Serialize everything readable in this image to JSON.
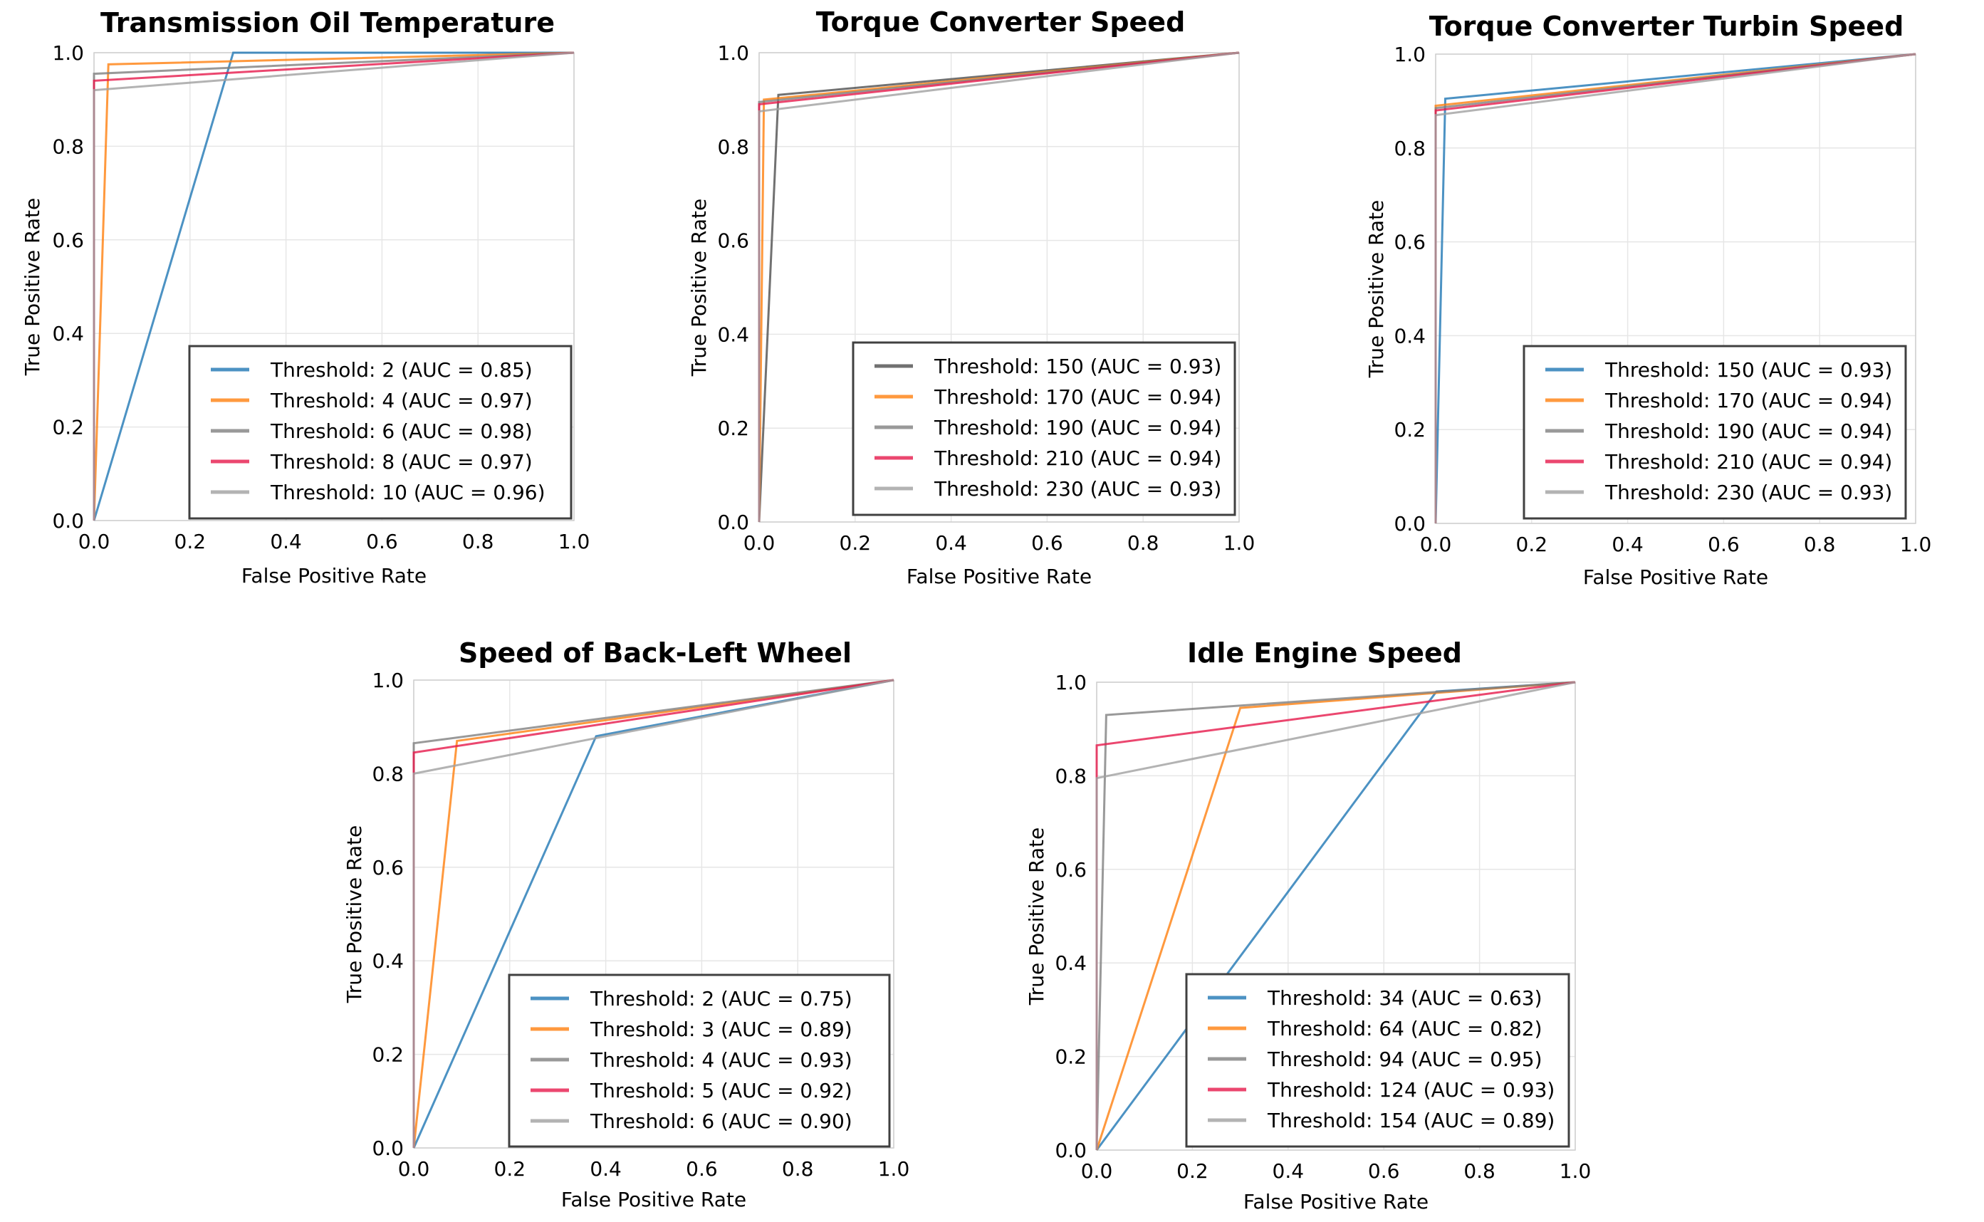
{
  "chart_data": [
    {
      "type": "line",
      "title": "Transmission Oil Temperature",
      "xlabel": "False Positive Rate",
      "ylabel": "True Positive Rate",
      "xlim": [
        0,
        1
      ],
      "ylim": [
        0,
        1
      ],
      "xticks": [
        "0.0",
        "0.2",
        "0.4",
        "0.6",
        "0.8",
        "1.0"
      ],
      "yticks": [
        "0.0",
        "0.2",
        "0.4",
        "0.6",
        "0.8",
        "1.0"
      ],
      "grid": true,
      "legend_position": "lower-right",
      "series": [
        {
          "name": "Threshold: 2 (AUC = 0.85)",
          "color": "#1f77b4",
          "x": [
            0,
            0.29,
            1
          ],
          "y": [
            0,
            1.0,
            1
          ]
        },
        {
          "name": "Threshold: 4 (AUC = 0.97)",
          "color": "#ff7f0e",
          "x": [
            0,
            0.03,
            1
          ],
          "y": [
            0,
            0.975,
            1
          ]
        },
        {
          "name": "Threshold: 6 (AUC = 0.98)",
          "color": "#7f7f7f",
          "x": [
            0,
            0.0,
            1
          ],
          "y": [
            0,
            0.955,
            1
          ]
        },
        {
          "name": "Threshold: 8 (AUC = 0.97)",
          "color": "#e6194b",
          "x": [
            0,
            0.0,
            1
          ],
          "y": [
            0,
            0.94,
            1
          ]
        },
        {
          "name": "Threshold: 10 (AUC = 0.96)",
          "color": "#a0a0a0",
          "x": [
            0,
            0.0,
            1
          ],
          "y": [
            0,
            0.92,
            1
          ]
        }
      ]
    },
    {
      "type": "line",
      "title": "Torque Converter Speed",
      "xlabel": "False Positive Rate",
      "ylabel": "True Positive Rate",
      "xlim": [
        0,
        1
      ],
      "ylim": [
        0,
        1
      ],
      "xticks": [
        "0.0",
        "0.2",
        "0.4",
        "0.6",
        "0.8",
        "1.0"
      ],
      "yticks": [
        "0.0",
        "0.2",
        "0.4",
        "0.6",
        "0.8",
        "1.0"
      ],
      "grid": true,
      "legend_position": "lower-right",
      "series": [
        {
          "name": "Threshold: 150 (AUC = 0.93)",
          "color": "#4d4d4d",
          "x": [
            0,
            0.04,
            1
          ],
          "y": [
            0,
            0.91,
            1
          ]
        },
        {
          "name": "Threshold: 170 (AUC = 0.94)",
          "color": "#ff7f0e",
          "x": [
            0,
            0.01,
            1
          ],
          "y": [
            0,
            0.9,
            1
          ]
        },
        {
          "name": "Threshold: 190 (AUC = 0.94)",
          "color": "#7f7f7f",
          "x": [
            0,
            0.0,
            1
          ],
          "y": [
            0,
            0.895,
            1
          ]
        },
        {
          "name": "Threshold: 210 (AUC = 0.94)",
          "color": "#e6194b",
          "x": [
            0,
            0.0,
            1
          ],
          "y": [
            0,
            0.89,
            1
          ]
        },
        {
          "name": "Threshold: 230 (AUC = 0.93)",
          "color": "#a0a0a0",
          "x": [
            0,
            0.0,
            1
          ],
          "y": [
            0,
            0.875,
            1
          ]
        }
      ]
    },
    {
      "type": "line",
      "title": "Torque Converter Turbin Speed",
      "xlabel": "False Positive Rate",
      "ylabel": "True Positive Rate",
      "xlim": [
        0,
        1
      ],
      "ylim": [
        0,
        1
      ],
      "xticks": [
        "0.0",
        "0.2",
        "0.4",
        "0.6",
        "0.8",
        "1.0"
      ],
      "yticks": [
        "0.0",
        "0.2",
        "0.4",
        "0.6",
        "0.8",
        "1.0"
      ],
      "grid": true,
      "legend_position": "lower-right",
      "series": [
        {
          "name": "Threshold: 150 (AUC = 0.93)",
          "color": "#1f77b4",
          "x": [
            0,
            0.02,
            1
          ],
          "y": [
            0,
            0.905,
            1
          ]
        },
        {
          "name": "Threshold: 170 (AUC = 0.94)",
          "color": "#ff7f0e",
          "x": [
            0,
            0.0,
            1
          ],
          "y": [
            0,
            0.89,
            1
          ]
        },
        {
          "name": "Threshold: 190 (AUC = 0.94)",
          "color": "#7f7f7f",
          "x": [
            0,
            0.0,
            1
          ],
          "y": [
            0,
            0.885,
            1
          ]
        },
        {
          "name": "Threshold: 210 (AUC = 0.94)",
          "color": "#e6194b",
          "x": [
            0,
            0.0,
            1
          ],
          "y": [
            0,
            0.88,
            1
          ]
        },
        {
          "name": "Threshold: 230 (AUC = 0.93)",
          "color": "#a0a0a0",
          "x": [
            0,
            0.0,
            1
          ],
          "y": [
            0,
            0.87,
            1
          ]
        }
      ]
    },
    {
      "type": "line",
      "title": "Speed of Back-Left Wheel",
      "xlabel": "False Positive Rate",
      "ylabel": "True Positive Rate",
      "xlim": [
        0,
        1
      ],
      "ylim": [
        0,
        1
      ],
      "xticks": [
        "0.0",
        "0.2",
        "0.4",
        "0.6",
        "0.8",
        "1.0"
      ],
      "yticks": [
        "0.0",
        "0.2",
        "0.4",
        "0.6",
        "0.8",
        "1.0"
      ],
      "grid": true,
      "legend_position": "lower-right",
      "series": [
        {
          "name": "Threshold: 2 (AUC = 0.75)",
          "color": "#1f77b4",
          "x": [
            0,
            0.38,
            1
          ],
          "y": [
            0,
            0.88,
            1
          ]
        },
        {
          "name": "Threshold: 3 (AUC = 0.89)",
          "color": "#ff7f0e",
          "x": [
            0,
            0.09,
            1
          ],
          "y": [
            0,
            0.87,
            1
          ]
        },
        {
          "name": "Threshold: 4 (AUC = 0.93)",
          "color": "#7f7f7f",
          "x": [
            0,
            0.0,
            1
          ],
          "y": [
            0,
            0.865,
            1
          ]
        },
        {
          "name": "Threshold: 5 (AUC = 0.92)",
          "color": "#e6194b",
          "x": [
            0,
            0.0,
            1
          ],
          "y": [
            0,
            0.845,
            1
          ]
        },
        {
          "name": "Threshold: 6 (AUC = 0.90)",
          "color": "#a0a0a0",
          "x": [
            0,
            0.0,
            1
          ],
          "y": [
            0,
            0.8,
            1
          ]
        }
      ]
    },
    {
      "type": "line",
      "title": "Idle Engine Speed",
      "xlabel": "False Positive Rate",
      "ylabel": "True Positive Rate",
      "xlim": [
        0,
        1
      ],
      "ylim": [
        0,
        1
      ],
      "xticks": [
        "0.0",
        "0.2",
        "0.4",
        "0.6",
        "0.8",
        "1.0"
      ],
      "yticks": [
        "0.0",
        "0.2",
        "0.4",
        "0.6",
        "0.8",
        "1.0"
      ],
      "grid": true,
      "legend_position": "lower-right",
      "series": [
        {
          "name": "Threshold: 34 (AUC = 0.63)",
          "color": "#1f77b4",
          "x": [
            0,
            0.71,
            1
          ],
          "y": [
            0,
            0.98,
            1
          ]
        },
        {
          "name": "Threshold: 64 (AUC = 0.82)",
          "color": "#ff7f0e",
          "x": [
            0,
            0.3,
            1
          ],
          "y": [
            0,
            0.945,
            1
          ]
        },
        {
          "name": "Threshold: 94 (AUC = 0.95)",
          "color": "#7f7f7f",
          "x": [
            0,
            0.02,
            1
          ],
          "y": [
            0,
            0.93,
            1
          ]
        },
        {
          "name": "Threshold: 124 (AUC = 0.93)",
          "color": "#e6194b",
          "x": [
            0,
            0.0,
            1
          ],
          "y": [
            0,
            0.865,
            1
          ]
        },
        {
          "name": "Threshold: 154 (AUC = 0.89)",
          "color": "#a0a0a0",
          "x": [
            0,
            0.0,
            1
          ],
          "y": [
            0,
            0.795,
            1
          ]
        }
      ]
    }
  ]
}
